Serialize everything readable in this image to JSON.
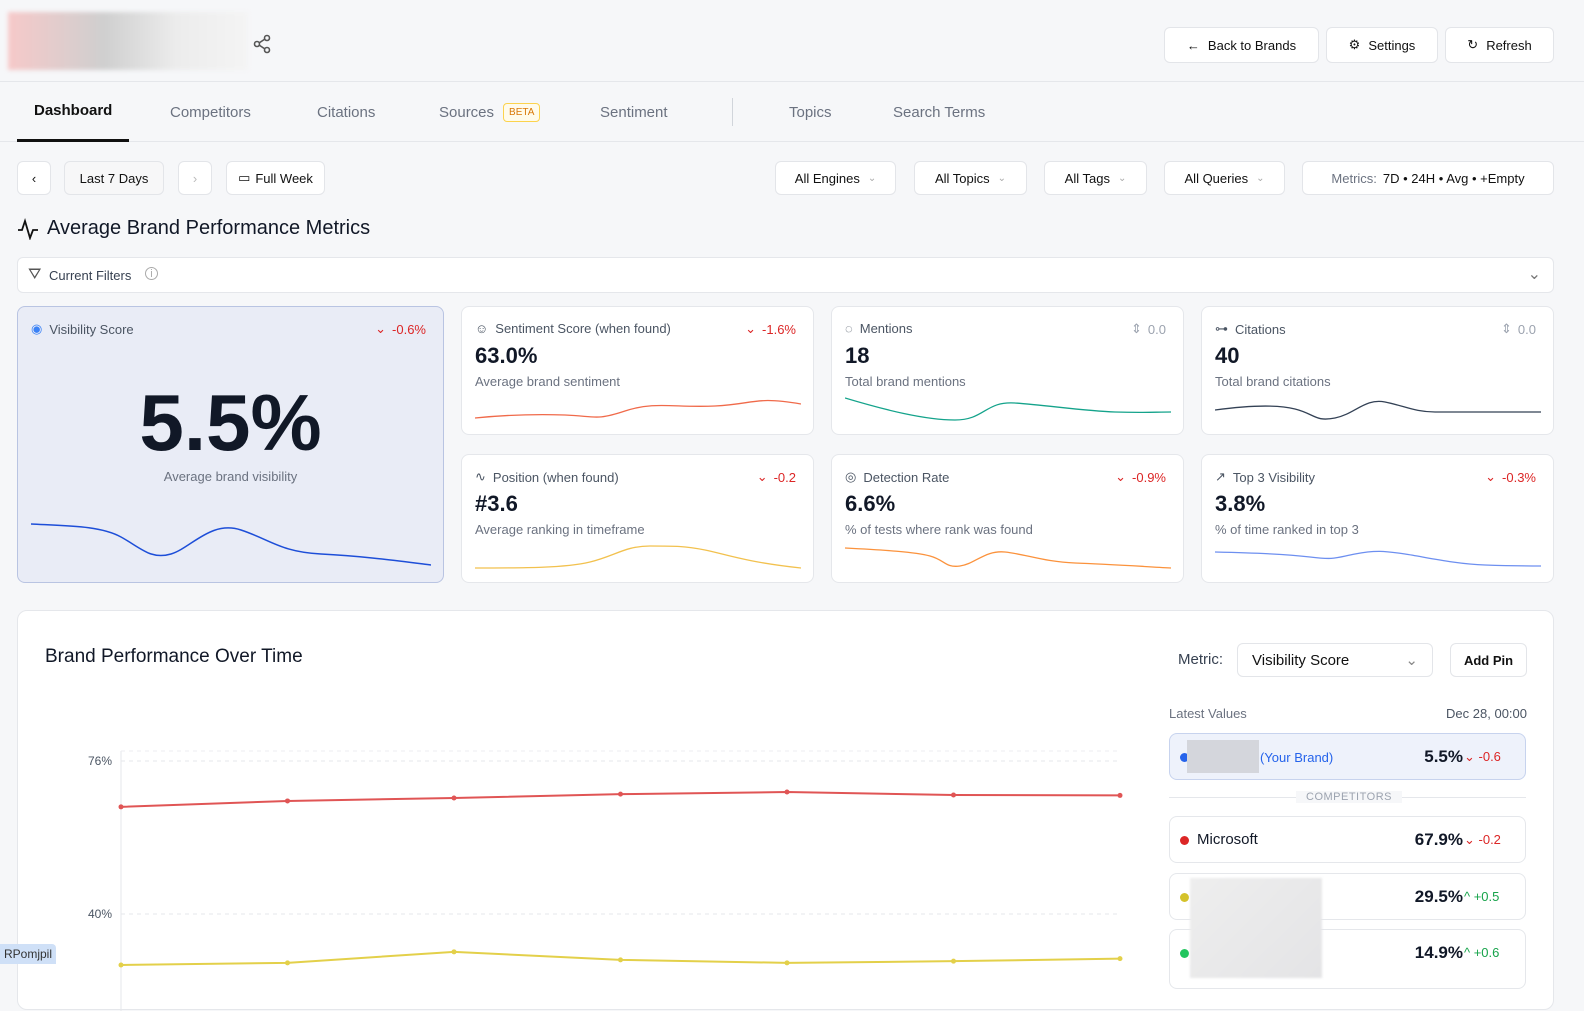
{
  "header": {
    "back_label": "Back to Brands",
    "settings_label": "Settings",
    "refresh_label": "Refresh"
  },
  "tabs": [
    {
      "label": "Dashboard",
      "active": true
    },
    {
      "label": "Competitors"
    },
    {
      "label": "Citations"
    },
    {
      "label": "Sources",
      "badge": "BETA"
    },
    {
      "label": "Sentiment"
    },
    {
      "label": "Topics"
    },
    {
      "label": "Search Terms"
    }
  ],
  "filters": {
    "period": "Last 7 Days",
    "week": "Full Week",
    "engines": "All Engines",
    "topics": "All Topics",
    "tags": "All Tags",
    "queries": "All Queries",
    "metrics_label": "Metrics:",
    "metrics_value": "7D • 24H • Avg • +Empty"
  },
  "section_title": "Average Brand Performance Metrics",
  "current_filters": "Current Filters",
  "metrics": {
    "visibility": {
      "title": "Visibility Score",
      "delta": "-0.6%",
      "value": "5.5%",
      "sub": "Average brand visibility"
    },
    "sentiment": {
      "title": "Sentiment Score (when found)",
      "delta": "-1.6%",
      "value": "63.0%",
      "sub": "Average brand sentiment"
    },
    "mentions": {
      "title": "Mentions",
      "delta": "0.0",
      "value": "18",
      "sub": "Total brand mentions"
    },
    "citations": {
      "title": "Citations",
      "delta": "0.0",
      "value": "40",
      "sub": "Total brand citations"
    },
    "position": {
      "title": "Position (when found)",
      "delta": "-0.2",
      "value": "#3.6",
      "sub": "Average ranking in timeframe"
    },
    "detection": {
      "title": "Detection Rate",
      "delta": "-0.9%",
      "value": "6.6%",
      "sub": "% of tests where rank was found"
    },
    "top3": {
      "title": "Top 3 Visibility",
      "delta": "-0.3%",
      "value": "3.8%",
      "sub": "% of time ranked in top 3"
    }
  },
  "performance": {
    "title": "Brand Performance Over Time",
    "metric_label": "Metric:",
    "metric_value": "Visibility Score",
    "add_pin": "Add Pin",
    "latest_label": "Latest Values",
    "latest_date": "Dec 28, 00:00",
    "your_brand": "(Your Brand)",
    "competitors_label": "COMPETITORS",
    "rows": [
      {
        "name": "",
        "value": "5.5%",
        "delta": "-0.6",
        "color": "#2563eb"
      },
      {
        "name": "Microsoft",
        "value": "67.9%",
        "delta": "-0.2",
        "color": "#dc2626"
      },
      {
        "name": "",
        "value": "29.5%",
        "delta": "+0.5",
        "color": "#d4c22a"
      },
      {
        "name": "",
        "value": "14.9%",
        "delta": "+0.6",
        "color": "#22c55e"
      }
    ]
  },
  "chart_data": {
    "type": "line",
    "y_ticks": [
      "76%",
      "40%"
    ],
    "grid": true,
    "series": [
      {
        "color": "#e05555",
        "values": [
          65.2,
          66.6,
          67.3,
          68.2,
          68.7,
          68.0,
          67.9
        ]
      },
      {
        "color": "#e3d04a",
        "values": [
          28.0,
          28.5,
          31.1,
          29.2,
          28.5,
          28.9,
          29.5
        ]
      }
    ]
  },
  "tooltip": "RPomjpil"
}
